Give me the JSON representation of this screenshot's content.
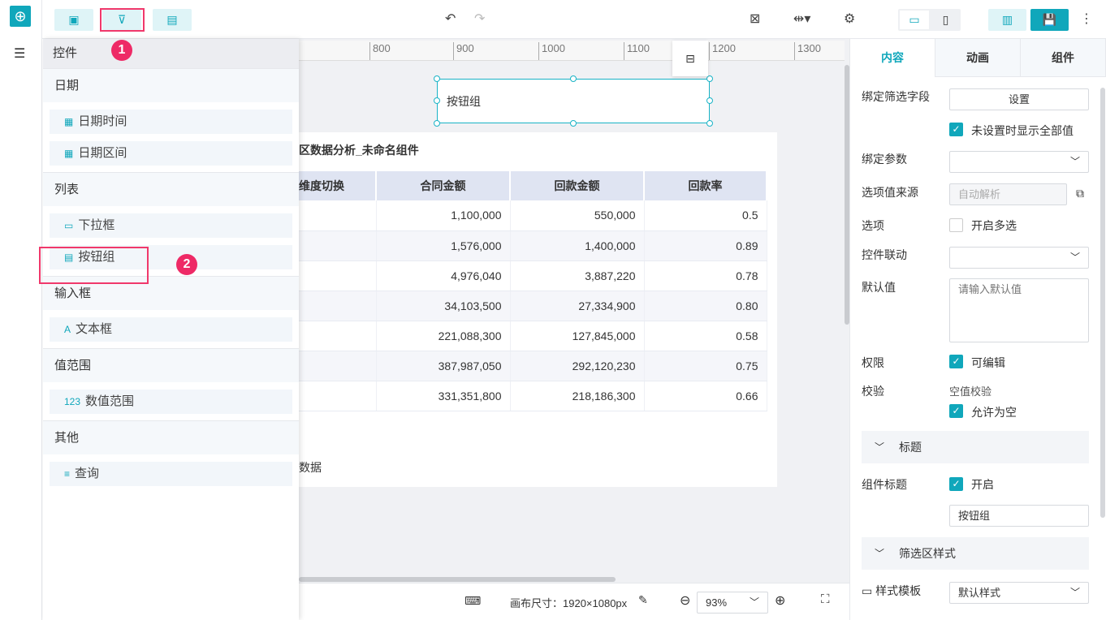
{
  "toolbar": {
    "undo": "↶",
    "redo": "↷",
    "more": "⋮"
  },
  "badges": [
    "1",
    "2"
  ],
  "panel": {
    "header": "控件",
    "sections": [
      {
        "title": "日期",
        "items": [
          "日期时间",
          "日期区间"
        ]
      },
      {
        "title": "列表",
        "items": [
          "下拉框",
          "按钮组"
        ]
      },
      {
        "title": "输入框",
        "items": [
          "文本框"
        ]
      },
      {
        "title": "值范围",
        "items": [
          "数值范围"
        ]
      },
      {
        "title": "其他",
        "items": [
          "查询"
        ]
      }
    ]
  },
  "ruler": [
    "800",
    "900",
    "1000",
    "1100",
    "1200",
    "1300"
  ],
  "canvas": {
    "button_group_label": "按钮组",
    "card_title": "区数据分析_未命名组件",
    "footer_text": "数据",
    "table": {
      "headers": [
        "维度切换",
        "合同金额",
        "回款金额",
        "回款率"
      ],
      "rows": [
        [
          "",
          "1,100,000",
          "550,000",
          "0.5"
        ],
        [
          "",
          "1,576,000",
          "1,400,000",
          "0.89"
        ],
        [
          "",
          "4,976,040",
          "3,887,220",
          "0.78"
        ],
        [
          "",
          "34,103,500",
          "27,334,900",
          "0.80"
        ],
        [
          "",
          "221,088,300",
          "127,845,000",
          "0.58"
        ],
        [
          "",
          "387,987,050",
          "292,120,230",
          "0.75"
        ],
        [
          "",
          "331,351,800",
          "218,186,300",
          "0.66"
        ]
      ]
    }
  },
  "bottom": {
    "canvas_size": "画布尺寸：1920×1080px",
    "zoom": "93%"
  },
  "right": {
    "tabs": [
      "内容",
      "动画",
      "组件"
    ],
    "bind_field": "绑定筛选字段",
    "set_btn": "设置",
    "show_all": "未设置时显示全部值",
    "bind_param": "绑定参数",
    "source": "选项值来源",
    "source_value": "自动解析",
    "options": "选项",
    "multi": "开启多选",
    "linkage": "控件联动",
    "default": "默认值",
    "default_ph": "请输入默认值",
    "perm": "权限",
    "editable": "可编辑",
    "validate": "校验",
    "empty_check": "空值校验",
    "allow_empty": "允许为空",
    "title_sec": "标题",
    "comp_title": "组件标题",
    "enable": "开启",
    "title_value": "按钮组",
    "filter_style": "筛选区样式",
    "style_tpl": "样式模板",
    "style_value": "默认样式"
  },
  "colors": {
    "accent": "#10a7bb",
    "highlight": "#f0386b"
  }
}
